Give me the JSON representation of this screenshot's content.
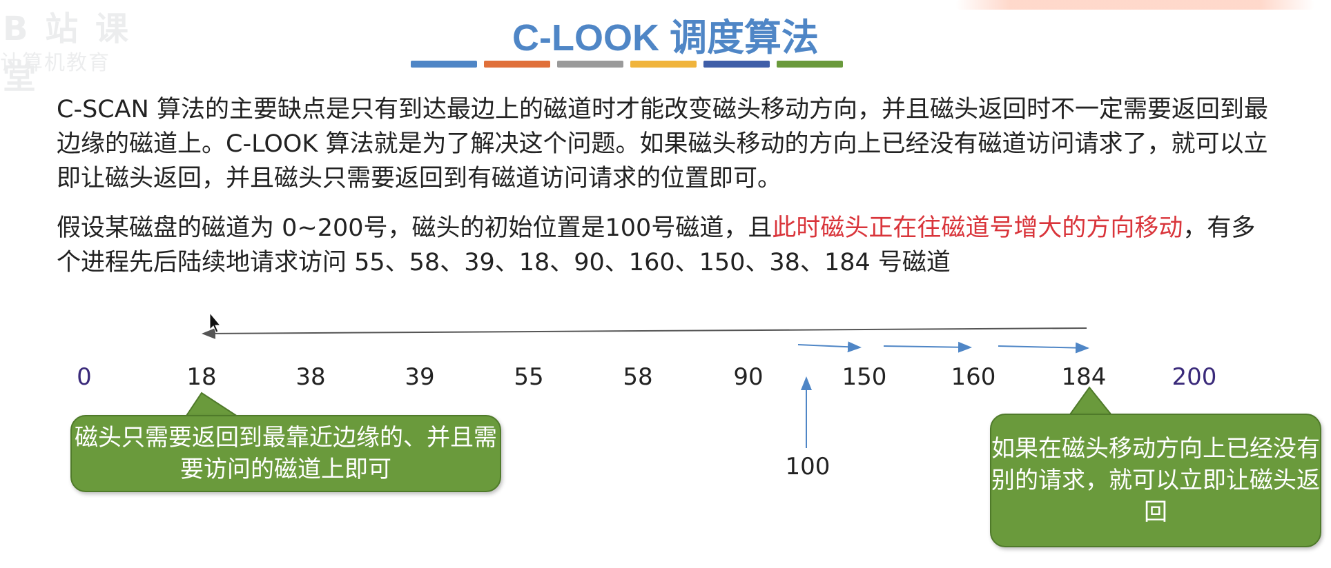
{
  "slide": {
    "title": "C-LOOK 调度算法",
    "title_color": "#4f86c6",
    "title_bar_colors": [
      "#4f86c6",
      "#e0703a",
      "#9a9a9a",
      "#f0b43c",
      "#3f5ea8",
      "#6a9a3c"
    ],
    "watermark": {
      "line1": "B 站 课 堂",
      "line2": "计算机教育"
    },
    "paragraph1": "C-SCAN 算法的主要缺点是只有到达最边上的磁道时才能改变磁头移动方向，并且磁头返回时不一定需要返回到最边缘的磁道上。C-LOOK 算法就是为了解决这个问题。如果磁头移动的方向上已经没有磁道访问请求了，就可以立即让磁头返回，并且磁头只需要返回到有磁道访问请求的位置即可。",
    "paragraph2": {
      "part1": "假设某磁盘的磁道为 0~200号，磁头的初始位置是100号磁道，且",
      "highlight": "此时磁头正在往磁道号增大的方向移动",
      "part2": "，有多个进程先后陆续地请求访问 55、58、39、18、90、160、150、38、184 号磁道",
      "highlight_color": "#d9343a"
    }
  },
  "diagram": {
    "tracks": [
      "0",
      "18",
      "38",
      "39",
      "55",
      "58",
      "90",
      "150",
      "160",
      "184",
      "200"
    ],
    "start_track": "100",
    "callout_left": "磁头只需要返回到最靠近边缘的、并且需要访问的磁道上即可",
    "callout_right": "如果在磁头移动方向上已经没有别的请求，就可以立即让磁头返回",
    "callout_color": "#6a9a3c"
  }
}
